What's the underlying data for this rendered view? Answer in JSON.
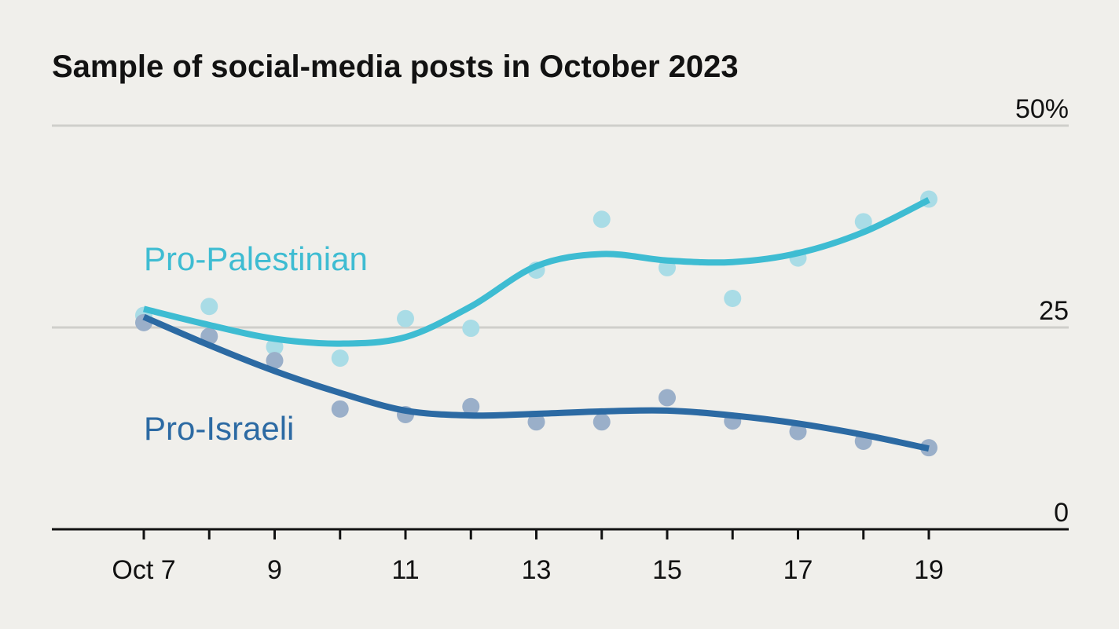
{
  "chart_data": {
    "type": "line",
    "title": "Sample of social-media posts in October 2023",
    "xlabel": "",
    "ylabel": "",
    "x": [
      "Oct 7",
      "8",
      "9",
      "10",
      "11",
      "12",
      "13",
      "14",
      "15",
      "16",
      "17",
      "18",
      "19"
    ],
    "x_tick_labels": [
      "Oct 7",
      "9",
      "11",
      "13",
      "15",
      "17",
      "19"
    ],
    "y_tick_labels": [
      "50%",
      "25",
      "0"
    ],
    "ylim": [
      0,
      50
    ],
    "grid": true,
    "series": [
      {
        "name": "Pro-Palestinian",
        "color": "#3ebcd2",
        "point_color": "#a9dce6",
        "values": [
          26.5,
          27.6,
          22.6,
          21.2,
          26.1,
          24.9,
          32.1,
          38.4,
          32.4,
          28.6,
          33.6,
          38.1,
          40.9
        ],
        "trend": [
          27.3,
          25.3,
          23.6,
          23.0,
          23.8,
          27.6,
          32.6,
          34.1,
          33.3,
          33.1,
          34.2,
          36.8,
          40.8
        ]
      },
      {
        "name": "Pro-Israeli",
        "color": "#2c6aa3",
        "point_color": "#9aafc9",
        "values": [
          25.6,
          23.9,
          20.9,
          14.9,
          14.2,
          15.2,
          13.3,
          13.3,
          16.3,
          13.4,
          12.1,
          10.9,
          10.1
        ],
        "trend": [
          26.3,
          22.8,
          19.6,
          16.9,
          14.7,
          14.1,
          14.3,
          14.6,
          14.7,
          14.1,
          13.1,
          11.7,
          10.0
        ]
      }
    ]
  }
}
